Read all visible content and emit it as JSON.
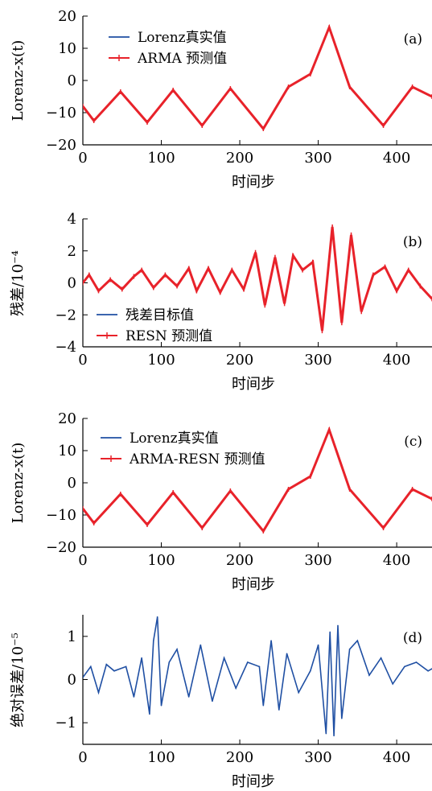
{
  "chart_data": [
    {
      "panel": "(a)",
      "type": "line",
      "xlabel": "时间步",
      "ylabel": "Lorenz-x(t)",
      "xlim": [
        0,
        445
      ],
      "ylim": [
        -20,
        20
      ],
      "xticks": [
        "0",
        "100",
        "200",
        "300",
        "400"
      ],
      "yticks": [
        "−20",
        "−10",
        "0",
        "10",
        "20"
      ],
      "legend": "top-left",
      "series": [
        {
          "name": "Lorenz真实值",
          "color": "#1f4fa3"
        },
        {
          "name": "ARMA 预测值",
          "color": "#e8222a"
        }
      ],
      "x": [
        0,
        14,
        48,
        82,
        115,
        152,
        188,
        230,
        262,
        290,
        314,
        340,
        383,
        420,
        445
      ],
      "values": [
        -8,
        -12.5,
        -3.5,
        -13,
        -3,
        -14,
        -2.5,
        -15,
        -2,
        2,
        16.5,
        -2,
        -14,
        -2,
        -5
      ]
    },
    {
      "panel": "(b)",
      "type": "line",
      "xlabel": "时间步",
      "ylabel": "残差/10⁻⁴",
      "xlim": [
        0,
        445
      ],
      "ylim": [
        -4,
        4
      ],
      "xticks": [
        "0",
        "100",
        "200",
        "300",
        "400"
      ],
      "yticks": [
        "−4",
        "−2",
        "0",
        "2",
        "4"
      ],
      "legend": "bottom-left",
      "series": [
        {
          "name": "残差目标值",
          "color": "#1f4fa3"
        },
        {
          "name": "RESN 预测值",
          "color": "#e8222a"
        }
      ],
      "x": [
        0,
        8,
        20,
        35,
        50,
        65,
        75,
        90,
        105,
        120,
        135,
        145,
        160,
        175,
        190,
        205,
        220,
        232,
        245,
        257,
        268,
        280,
        293,
        305,
        318,
        330,
        342,
        355,
        370,
        385,
        400,
        415,
        430,
        445
      ],
      "values": [
        0,
        0.5,
        -0.5,
        0.2,
        -0.4,
        0.4,
        0.8,
        -0.3,
        0.5,
        -0.2,
        0.9,
        -0.5,
        0.9,
        -0.6,
        0.8,
        -0.4,
        1.9,
        -1.4,
        1.6,
        -1.3,
        1.7,
        0.8,
        1.3,
        -3.0,
        3.5,
        -2.5,
        3.0,
        -1.8,
        0.5,
        1.0,
        -0.5,
        0.8,
        -0.2,
        -1.0
      ]
    },
    {
      "panel": "(c)",
      "type": "line",
      "xlabel": "时间步",
      "ylabel": "Lorenz-x(t)",
      "xlim": [
        0,
        445
      ],
      "ylim": [
        -20,
        20
      ],
      "xticks": [
        "0",
        "100",
        "200",
        "300",
        "400"
      ],
      "yticks": [
        "−20",
        "−10",
        "0",
        "10",
        "20"
      ],
      "legend": "top-left",
      "series": [
        {
          "name": "Lorenz真实值",
          "color": "#1f4fa3"
        },
        {
          "name": "ARMA-RESN 预测值",
          "color": "#e8222a"
        }
      ],
      "x": [
        0,
        14,
        48,
        82,
        115,
        152,
        188,
        230,
        262,
        290,
        314,
        340,
        383,
        420,
        445
      ],
      "values": [
        -8,
        -12.5,
        -3.5,
        -13,
        -3,
        -14,
        -2.5,
        -15,
        -2,
        2,
        16.5,
        -2,
        -14,
        -2,
        -5
      ]
    },
    {
      "panel": "(d)",
      "type": "line",
      "xlabel": "时间步",
      "ylabel": "绝对误差/10⁻⁵",
      "xlim": [
        0,
        445
      ],
      "ylim": [
        -1.5,
        1.5
      ],
      "xticks": [
        "0",
        "100",
        "200",
        "300",
        "400"
      ],
      "yticks": [
        "−1",
        "0",
        "1"
      ],
      "series": [
        {
          "name": "",
          "color": "#1f4fa3"
        }
      ],
      "x": [
        0,
        10,
        20,
        30,
        40,
        55,
        65,
        75,
        85,
        90,
        95,
        100,
        110,
        120,
        135,
        150,
        165,
        180,
        195,
        210,
        225,
        230,
        240,
        250,
        260,
        275,
        290,
        300,
        310,
        315,
        320,
        325,
        330,
        340,
        350,
        365,
        380,
        395,
        410,
        425,
        440,
        445
      ],
      "values": [
        0.05,
        0.3,
        -0.3,
        0.35,
        0.2,
        0.3,
        -0.4,
        0.5,
        -0.8,
        0.9,
        1.45,
        -0.6,
        0.4,
        0.7,
        -0.4,
        0.8,
        -0.5,
        0.5,
        -0.2,
        0.4,
        0.3,
        -0.6,
        0.9,
        -0.7,
        0.6,
        -0.3,
        0.2,
        0.8,
        -1.25,
        1.1,
        -1.3,
        1.25,
        -0.9,
        0.7,
        0.9,
        0.1,
        0.5,
        -0.1,
        0.3,
        0.4,
        0.2,
        0.25
      ]
    }
  ]
}
